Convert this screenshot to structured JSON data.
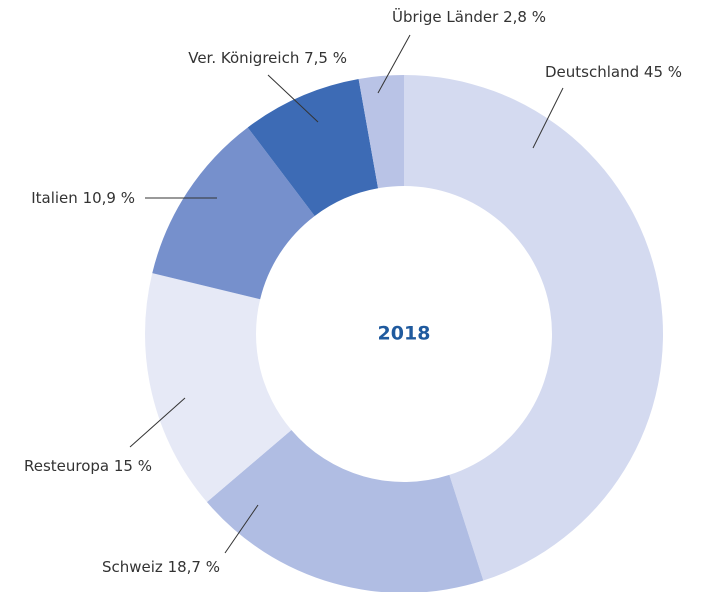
{
  "chart_data": {
    "type": "donut",
    "center_label": "2018",
    "categories": [
      "Deutschland",
      "Schweiz",
      "Resteuropa",
      "Italien",
      "Ver. Königreich",
      "Übrige Länder"
    ],
    "values": [
      45,
      18.7,
      15,
      10.9,
      7.5,
      2.8
    ],
    "value_labels": [
      "45 %",
      "18,7 %",
      "15 %",
      "10,9 %",
      "7,5 %",
      "2,8 %"
    ],
    "colors": [
      "#d4daf0",
      "#b0bde3",
      "#e6e9f6",
      "#7690cc",
      "#3d6bb5",
      "#b9c3e6"
    ]
  }
}
